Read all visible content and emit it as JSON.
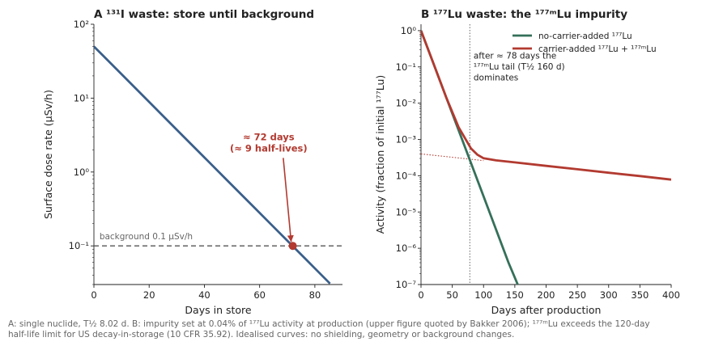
{
  "caption": {
    "line1": "A: single nuclide, T½ 8.02 d. B: impurity set at 0.04% of ¹⁷⁷Lu activity at production (upper figure quoted by Bakker 2006); ¹⁷⁷ᵐLu exceeds the 120-day",
    "line2": "half-life limit for US decay-in-storage (10 CFR 35.92). Idealised curves: no shielding, geometry or background changes."
  },
  "colors": {
    "blue": "#3a5f8a",
    "red": "#b23a30",
    "green": "#35705a",
    "grey": "#555555"
  },
  "chart_data": [
    {
      "type": "line",
      "panel_label": "A",
      "title": "¹³¹I waste: store until background",
      "xlabel": "Days in store",
      "ylabel": "Surface dose rate (µSv/h)",
      "x_scale": "linear",
      "y_scale": "log",
      "xlim": [
        0,
        90
      ],
      "ylim": [
        0.03,
        100
      ],
      "x_ticks": [
        0,
        20,
        40,
        60,
        80
      ],
      "x_tick_labels": [
        "0",
        "20",
        "40",
        "60",
        "80"
      ],
      "y_ticks": [
        0.1,
        1,
        10,
        100
      ],
      "y_tick_labels": [
        "10⁻¹",
        "10⁰",
        "10¹",
        "10²"
      ],
      "grid": false,
      "series": [
        {
          "color": "#3a5f8a",
          "x": [
            0,
            8.02,
            16.04,
            24.06,
            32.08,
            40.1,
            48.12,
            56.14,
            64.16,
            72.18,
            80.2,
            85.5
          ],
          "y": [
            50,
            25,
            12.5,
            6.25,
            3.125,
            1.5625,
            0.781,
            0.391,
            0.195,
            0.0977,
            0.0488,
            0.0309
          ]
        }
      ],
      "reference_line": {
        "y": 0.1,
        "label": "background 0.1 µSv/h",
        "style": "dashed"
      },
      "marker": {
        "x": 72,
        "y": 0.1
      },
      "annotation": {
        "line1": "≈ 72 days",
        "line2": "(≈ 9 half-lives)",
        "text_x": 58,
        "text_y": 2.7
      }
    },
    {
      "type": "line",
      "panel_label": "B",
      "title": "¹⁷⁷Lu waste: the ¹⁷⁷ᵐLu impurity",
      "xlabel": "Days after production",
      "ylabel": "Activity (fraction of initial ¹⁷⁷Lu)",
      "x_scale": "linear",
      "y_scale": "log",
      "xlim": [
        0,
        400
      ],
      "ylim": [
        1e-07,
        1.5
      ],
      "x_ticks": [
        0,
        50,
        100,
        150,
        200,
        250,
        300,
        350,
        400
      ],
      "x_tick_labels": [
        "0",
        "50",
        "100",
        "150",
        "200",
        "250",
        "300",
        "350",
        "400"
      ],
      "y_ticks": [
        1e-07,
        1e-06,
        1e-05,
        0.0001,
        0.001,
        0.01,
        0.1,
        1
      ],
      "y_tick_labels": [
        "10⁻⁷",
        "10⁻⁶",
        "10⁻⁵",
        "10⁻⁴",
        "10⁻³",
        "10⁻²",
        "10⁻¹",
        "10⁰"
      ],
      "grid": false,
      "legend_position": "top-right",
      "series": [
        {
          "name": "no-carrier-added ¹⁷⁷Lu",
          "color": "#35705a",
          "x": [
            0,
            20,
            40,
            60,
            80,
            100,
            120,
            140,
            155
          ],
          "y": [
            1,
            0.122,
            0.0149,
            0.00181,
            0.000221,
            2.69e-05,
            3.28e-06,
            4e-07,
            9.7e-08
          ]
        },
        {
          "name": "carrier-added ¹⁷⁷Lu + ¹⁷⁷ᵐLu",
          "color": "#b23a30",
          "x": [
            0,
            20,
            40,
            60,
            80,
            90,
            100,
            120,
            150,
            200,
            250,
            300,
            350,
            400
          ],
          "y": [
            1,
            0.122,
            0.0149,
            0.00218,
            0.000559,
            0.000381,
            0.000303,
            0.000265,
            0.000233,
            0.000187,
            0.000151,
            0.000121,
            9.8e-05,
            7.8e-05
          ]
        }
      ],
      "tail_extrapolation": {
        "x": [
          0,
          100
        ],
        "y": [
          0.0004,
          0.000261
        ],
        "style": "dotted"
      },
      "vertical_marker": {
        "x": 78,
        "style": "dotted"
      },
      "annotation": {
        "line1": "after ≈ 78 days the",
        "line2": "¹⁷⁷ᵐLu tail (T½ 160 d)",
        "line3": "dominates",
        "text_x": 84,
        "text_y": 0.17
      }
    }
  ]
}
